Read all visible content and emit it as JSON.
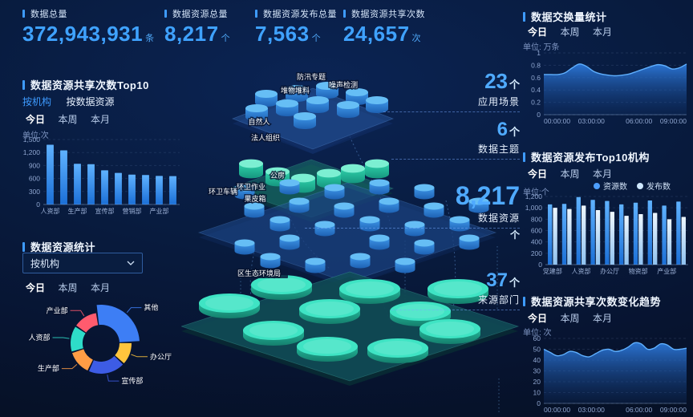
{
  "stats": [
    {
      "label": "数据总量",
      "value": "372,943,931",
      "unit": "条"
    },
    {
      "label": "数据资源总量",
      "value": "8,217",
      "unit": "个"
    },
    {
      "label": "数据资源发布总量",
      "value": "7,563",
      "unit": "个"
    },
    {
      "label": "数据资源共享次数",
      "value": "24,657",
      "unit": "次"
    }
  ],
  "panels": {
    "share_top10": {
      "title": "数据资源共享次数Top10",
      "mode_tabs": [
        "按机构",
        "按数据资源"
      ],
      "time_tabs": [
        "今日",
        "本周",
        "本月"
      ],
      "unit": "单位:次"
    },
    "resource_stats": {
      "title": "数据资源统计",
      "dropdown_value": "按机构",
      "time_tabs": [
        "今日",
        "本周",
        "本月"
      ]
    },
    "exchange": {
      "title": "数据交换量统计",
      "time_tabs": [
        "今日",
        "本周",
        "本月"
      ],
      "unit": "单位: 万条"
    },
    "publish_top10": {
      "title": "数据资源发布Top10机构",
      "time_tabs": [
        "今日",
        "本周",
        "本月"
      ],
      "unit": "单位:个",
      "legend": [
        "资源数",
        "发布数"
      ]
    },
    "share_trend": {
      "title": "数据资源共享次数变化趋势",
      "time_tabs": [
        "今日",
        "本周",
        "本月"
      ],
      "unit": "单位: 次"
    }
  },
  "scene": {
    "layers": [
      {
        "name": "应用场景",
        "count_value": "23",
        "count_suffix": "个",
        "item_labels": [
          "防汛专题",
          "噪声检测",
          "堆物堆料"
        ]
      },
      {
        "name": "数据主题",
        "count_value": "6",
        "count_suffix": "个",
        "item_labels": [
          "自然人",
          "法人组织"
        ]
      },
      {
        "name": "数据资源",
        "count_value": "8,217",
        "count_suffix": "个",
        "item_labels": [
          "公房",
          "环卫作业",
          "环卫车辆",
          "果皮箱"
        ]
      },
      {
        "name": "来源部门",
        "count_value": "37",
        "count_suffix": "个",
        "item_labels": [
          "区生态环境局"
        ]
      }
    ]
  },
  "colors": {
    "accent": "#3e9bff",
    "stat_value": "#3fa2ff",
    "bar_blue_top": "#56aaff",
    "bar_blue_bottom": "#1b6fd6",
    "bar_pale_top": "#eaf5ff",
    "bar_pale_bottom": "#8fc2f0",
    "area_line": "#5fb0ff",
    "cyl_blue": "#3e96e8",
    "cyl_green": "#2fd0aa",
    "disc_teal": "#2bbfa0"
  },
  "chart_data": [
    {
      "id": "exchange",
      "type": "area",
      "title": "数据交换量统计",
      "ylabel": "万条",
      "x_ticks": [
        "00:00:00",
        "03:00:00",
        "06:00:00",
        "09:00:00"
      ],
      "y_ticks": [
        0,
        0.2,
        0.4,
        0.6,
        0.8,
        1
      ],
      "ylim": [
        0,
        1
      ],
      "grid": true,
      "legend_position": "none",
      "values": [
        0.65,
        0.65,
        0.65,
        0.68,
        0.76,
        0.82,
        0.78,
        0.7,
        0.66,
        0.64,
        0.63,
        0.64,
        0.66,
        0.7,
        0.74,
        0.78,
        0.81,
        0.79,
        0.74,
        0.76,
        0.82
      ]
    },
    {
      "id": "publish_top10",
      "type": "bar",
      "title": "数据资源发布Top10机构",
      "ylabel": "个",
      "categories": [
        "党建部",
        "",
        "人资部",
        "",
        "办公厅",
        "",
        "物资部",
        "",
        "产业部",
        ""
      ],
      "y_ticks": [
        0,
        200,
        400,
        600,
        800,
        1000,
        1200
      ],
      "ylim": [
        0,
        1200
      ],
      "grid": true,
      "legend_position": "top-right",
      "series": [
        {
          "name": "资源数",
          "values": [
            1060,
            1070,
            1190,
            1140,
            1120,
            1060,
            1090,
            1130,
            1040,
            1110
          ]
        },
        {
          "name": "发布数",
          "values": [
            1000,
            980,
            1040,
            960,
            930,
            860,
            890,
            910,
            800,
            840
          ]
        }
      ]
    },
    {
      "id": "share_trend",
      "type": "area",
      "title": "数据资源共享次数变化趋势",
      "ylabel": "次",
      "x_ticks": [
        "00:00:00",
        "03:00:00",
        "06:00:00",
        "09:00:00"
      ],
      "y_ticks": [
        0,
        10,
        20,
        30,
        40,
        50,
        60
      ],
      "ylim": [
        0,
        60
      ],
      "grid": true,
      "legend_position": "none",
      "values": [
        50,
        47,
        44,
        45,
        48,
        47,
        44,
        43,
        46,
        49,
        50,
        48,
        49,
        52,
        56,
        55,
        50,
        51,
        55,
        54,
        50,
        50,
        51
      ]
    },
    {
      "id": "share_top10",
      "type": "bar",
      "title": "数据资源共享次数Top10",
      "ylabel": "次",
      "categories": [
        "人资部",
        "",
        "生产部",
        "",
        "宣传部",
        "",
        "营销部",
        "",
        "产业部",
        ""
      ],
      "y_ticks": [
        0,
        300,
        600,
        900,
        1200,
        1500
      ],
      "ylim": [
        0,
        1500
      ],
      "grid": true,
      "legend_position": "none",
      "values": [
        1380,
        1250,
        940,
        930,
        790,
        730,
        690,
        680,
        660,
        655
      ]
    },
    {
      "id": "resource_donut",
      "type": "pie",
      "title": "数据资源统计",
      "segments": [
        {
          "label": "其他",
          "value": 27,
          "color": "#3d7ef5",
          "emphasis": true
        },
        {
          "label": "办公厅",
          "value": 12,
          "color": "#ffc53d"
        },
        {
          "label": "宣传部",
          "value": 20,
          "color": "#3d5ce5"
        },
        {
          "label": "生产部",
          "value": 13,
          "color": "#ff9d45"
        },
        {
          "label": "人资部",
          "value": 14,
          "color": "#2edcc8"
        },
        {
          "label": "产业部",
          "value": 13,
          "color": "#ff5b6e"
        }
      ]
    }
  ]
}
